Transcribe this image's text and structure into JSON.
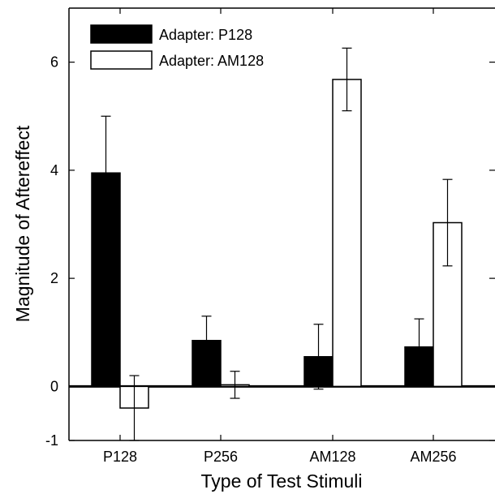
{
  "chart_data": {
    "type": "bar",
    "title": "",
    "xlabel": "Type of Test Stimuli",
    "ylabel": "Magnitude of Aftereffect",
    "categories": [
      "P128",
      "P256",
      "AM128",
      "AM256"
    ],
    "ylim": [
      -1,
      7
    ],
    "yticks": [
      -1,
      0,
      2,
      4,
      6
    ],
    "ytick_labels": [
      "-1",
      "0",
      "2",
      "4",
      "6"
    ],
    "series": [
      {
        "name": "Adapter: P128",
        "color": "#000000",
        "values": [
          3.95,
          0.85,
          0.55,
          0.73
        ],
        "error": [
          1.05,
          0.45,
          0.6,
          0.52
        ]
      },
      {
        "name": "Adapter: AM128",
        "color": "#ffffff",
        "values": [
          -0.4,
          0.03,
          5.68,
          3.03
        ],
        "error": [
          0.6,
          0.25,
          0.58,
          0.8
        ]
      }
    ],
    "legend_position": "top-left",
    "grid": false
  }
}
